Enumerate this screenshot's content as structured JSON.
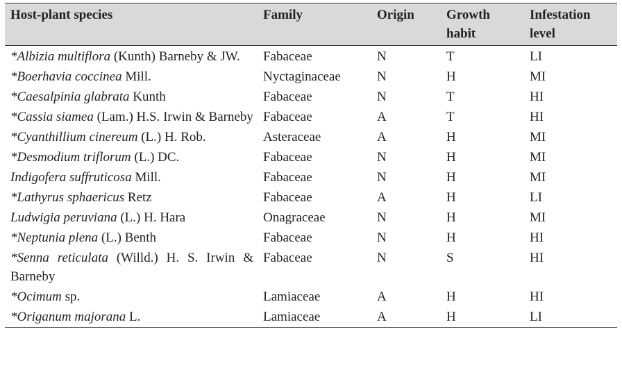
{
  "table": {
    "header": [
      "Host-plant species",
      "Family",
      "Origin",
      "Growth habit",
      "Infestation level"
    ],
    "rows": [
      {
        "species": {
          "mark": "*",
          "name": "Albizia multiflora",
          "authority": "(Kunth) Barneby & JW."
        },
        "family": "Fabaceae",
        "origin": "N",
        "habit": "T",
        "level": "LI"
      },
      {
        "species": {
          "mark": "*",
          "name": "Boerhavia coccinea",
          "authority": "Mill."
        },
        "family": "Nyctaginaceae",
        "origin": "N",
        "habit": "H",
        "level": "MI"
      },
      {
        "species": {
          "mark": "*",
          "name": "Caesalpinia glabrata",
          "authority": "Kunth"
        },
        "family": "Fabaceae",
        "origin": "N",
        "habit": "T",
        "level": "HI"
      },
      {
        "species": {
          "mark": "*",
          "name": "Cassia siamea",
          "authority": "(Lam.) H.S. Irwin & Barneby"
        },
        "family": "Fabaceae",
        "origin": "A",
        "habit": "T",
        "level": "HI"
      },
      {
        "species": {
          "mark": "*",
          "name": "Cyanthillium cinereum",
          "authority": "(L.) H. Rob."
        },
        "family": "Asteraceae",
        "origin": "A",
        "habit": "H",
        "level": "MI"
      },
      {
        "species": {
          "mark": "*",
          "name": "Desmodium triflorum",
          "authority": "(L.) DC."
        },
        "family": "Fabaceae",
        "origin": "N",
        "habit": "H",
        "level": "MI"
      },
      {
        "species": {
          "name": "Indigofera suffruticosa",
          "authority": "Mill."
        },
        "family": "Fabaceae",
        "origin": "N",
        "habit": "H",
        "level": "MI"
      },
      {
        "species": {
          "mark": "*",
          "name": "Lathyrus sphaericus",
          "authority": "Retz"
        },
        "family": "Fabaceae",
        "origin": "A",
        "habit": "H",
        "level": "LI"
      },
      {
        "species": {
          "name": "Ludwigia peruviana",
          "authority": "(L.) H. Hara"
        },
        "family": "Onagraceae",
        "origin": "N",
        "habit": "H",
        "level": "MI"
      },
      {
        "species": {
          "mark": "*",
          "name": "Neptunia plena",
          "authority": "(L.) Benth"
        },
        "family": "Fabaceae",
        "origin": "N",
        "habit": "H",
        "level": "HI"
      },
      {
        "species": {
          "mark": "*",
          "name": "Senna reticulata",
          "authority": "(Willd.) H. S. Irwin & Barneby"
        },
        "family": "Fabaceae",
        "origin": "N",
        "habit": "S",
        "level": "HI"
      },
      {
        "species": {
          "mark": "*",
          "name": "Ocimum",
          "authority": "sp."
        },
        "family": "Lamiaceae",
        "origin": "A",
        "habit": "H",
        "level": "HI"
      },
      {
        "species": {
          "mark": "*",
          "name": "Origanum majorana",
          "authority": "L."
        },
        "family": "Lamiaceae",
        "origin": "A",
        "habit": "H",
        "level": "LI"
      }
    ]
  }
}
